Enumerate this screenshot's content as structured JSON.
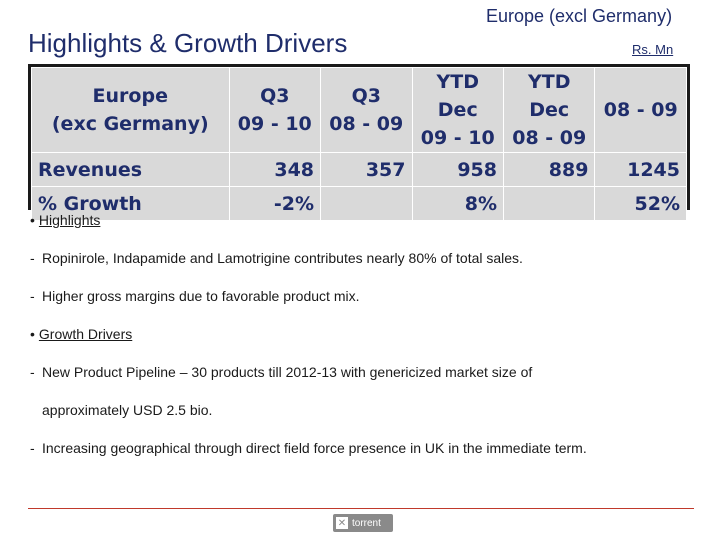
{
  "header": {
    "title": "Highlights & Growth Drivers",
    "region": "Europe (excl Germany)",
    "unit": "Rs.  Mn"
  },
  "table": {
    "columns": [
      [
        "Europe",
        "(exc Germany)"
      ],
      [
        "Q3",
        "09 - 10"
      ],
      [
        "Q3",
        "08 - 09"
      ],
      [
        "YTD Dec",
        "09 - 10"
      ],
      [
        "YTD Dec",
        "08 - 09"
      ],
      [
        "",
        "08 - 09"
      ]
    ],
    "rows": [
      [
        "Revenues",
        "348",
        "357",
        "958",
        "889",
        "1245"
      ],
      [
        "% Growth",
        "-2%",
        "",
        "8%",
        "",
        "52%"
      ]
    ]
  },
  "sections": [
    {
      "heading": "Highlights",
      "items": [
        [
          "Ropinirole, Indapamide and Lamotrigine contributes nearly 80% of total sales."
        ],
        [
          "Higher gross margins due to favorable product mix."
        ]
      ]
    },
    {
      "heading": "Growth Drivers",
      "items": [
        [
          "New Product Pipeline – 30 products till 2012-13 with genericized market size of",
          "approximately USD 2.5 bio."
        ],
        [
          "Increasing geographical through direct field force presence in UK in the immediate term."
        ]
      ]
    }
  ],
  "footer": {
    "logo_text": "torrent"
  },
  "colors": {
    "title": "#1f2d6b",
    "table_fill": "#d9d9d9",
    "footer_rule": "#c0392b"
  }
}
